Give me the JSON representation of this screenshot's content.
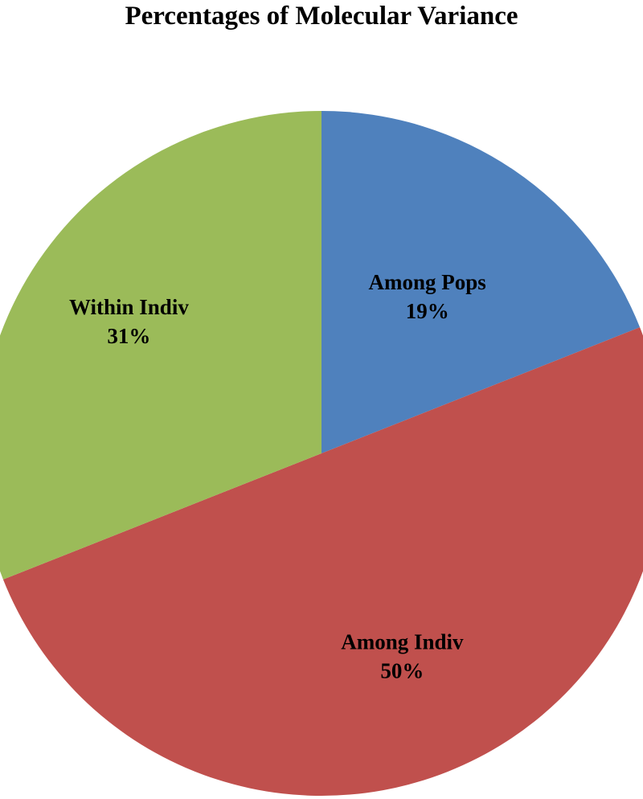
{
  "chart_data": {
    "type": "pie",
    "title": "Percentages of Molecular Variance",
    "slices": [
      {
        "label": "Among Pops",
        "value": 19,
        "value_label": "19%",
        "color": "#4F81BD"
      },
      {
        "label": "Among Indiv",
        "value": 50,
        "value_label": "50%",
        "color": "#C0504D"
      },
      {
        "label": "Within Indiv",
        "value": 31,
        "value_label": "31%",
        "color": "#9BBB59"
      }
    ],
    "start_angle": "12 o'clock",
    "direction": "clockwise",
    "legend": "none"
  }
}
